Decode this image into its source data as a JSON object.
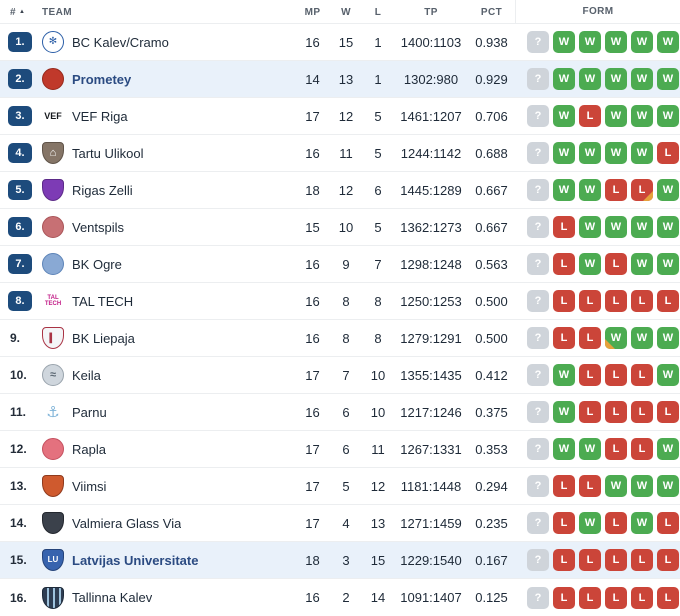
{
  "colors": {
    "badge": "#1d4b7c",
    "win": "#4cab51",
    "loss": "#cb4539",
    "unknown": "#cfd4da",
    "overtime_corner": "#e6a23c",
    "highlight_row": "#e9f1fa",
    "header_text": "#58616c",
    "text": "#1e2a38",
    "team_highlight": "#2b4b82",
    "border": "#eceef0"
  },
  "header": {
    "rank": "#",
    "sort_icon": "▲",
    "team": "TEAM",
    "mp": "MP",
    "w": "W",
    "l": "L",
    "tp": "TP",
    "pct": "PCT",
    "form": "FORM"
  },
  "teams": [
    {
      "rank": "1.",
      "badge": true,
      "highlight": false,
      "name": "BC Kalev/Cramo",
      "mp": 16,
      "w": 15,
      "l": 1,
      "tp": "1400:1103",
      "pct": "0.938",
      "logo": {
        "shape": "circle",
        "bg": "#ffffff",
        "border": "#2b5ea7",
        "label": "✻",
        "labelColor": "#2b5ea7",
        "labelSize": "10px"
      },
      "form": [
        {
          "r": "?"
        },
        {
          "r": "W"
        },
        {
          "r": "W"
        },
        {
          "r": "W"
        },
        {
          "r": "W"
        },
        {
          "r": "W"
        }
      ]
    },
    {
      "rank": "2.",
      "badge": true,
      "highlight": true,
      "name": "Prometey",
      "mp": 14,
      "w": 13,
      "l": 1,
      "tp": "1302:980",
      "pct": "0.929",
      "logo": {
        "shape": "circle",
        "bg": "#c0392b",
        "border": "#96281b",
        "label": "",
        "labelColor": "#ffffff",
        "labelSize": "9px"
      },
      "form": [
        {
          "r": "?"
        },
        {
          "r": "W"
        },
        {
          "r": "W"
        },
        {
          "r": "W"
        },
        {
          "r": "W"
        },
        {
          "r": "W"
        }
      ]
    },
    {
      "rank": "3.",
      "badge": true,
      "highlight": false,
      "name": "VEF Riga",
      "mp": 17,
      "w": 12,
      "l": 5,
      "tp": "1461:1207",
      "pct": "0.706",
      "logo": {
        "shape": "text",
        "bg": "transparent",
        "border": "",
        "label": "VEF",
        "labelColor": "#15181c",
        "labelSize": "9px"
      },
      "form": [
        {
          "r": "?"
        },
        {
          "r": "W"
        },
        {
          "r": "L"
        },
        {
          "r": "W"
        },
        {
          "r": "W"
        },
        {
          "r": "W"
        }
      ]
    },
    {
      "rank": "4.",
      "badge": true,
      "highlight": false,
      "name": "Tartu Ulikool",
      "mp": 16,
      "w": 11,
      "l": 5,
      "tp": "1244:1142",
      "pct": "0.688",
      "logo": {
        "shape": "shield",
        "bg": "#857567",
        "border": "#5f5348",
        "label": "⌂",
        "labelColor": "#ffffff",
        "labelSize": "11px"
      },
      "form": [
        {
          "r": "?"
        },
        {
          "r": "W"
        },
        {
          "r": "W"
        },
        {
          "r": "W"
        },
        {
          "r": "W"
        },
        {
          "r": "L"
        }
      ]
    },
    {
      "rank": "5.",
      "badge": true,
      "highlight": false,
      "name": "Rigas Zelli",
      "mp": 18,
      "w": 12,
      "l": 6,
      "tp": "1445:1289",
      "pct": "0.667",
      "logo": {
        "shape": "shield",
        "bg": "#7d3bb5",
        "border": "#5c2a88",
        "label": "",
        "labelColor": "#ffffff",
        "labelSize": "9px"
      },
      "form": [
        {
          "r": "?"
        },
        {
          "r": "W"
        },
        {
          "r": "W"
        },
        {
          "r": "L"
        },
        {
          "r": "L",
          "corner": "br"
        },
        {
          "r": "W"
        }
      ]
    },
    {
      "rank": "6.",
      "badge": true,
      "highlight": false,
      "name": "Ventspils",
      "mp": 15,
      "w": 10,
      "l": 5,
      "tp": "1362:1273",
      "pct": "0.667",
      "logo": {
        "shape": "circle",
        "bg": "#c77074",
        "border": "#a95458",
        "label": "",
        "labelColor": "#ffffff",
        "labelSize": "9px"
      },
      "form": [
        {
          "r": "?"
        },
        {
          "r": "L"
        },
        {
          "r": "W"
        },
        {
          "r": "W"
        },
        {
          "r": "W"
        },
        {
          "r": "W"
        }
      ]
    },
    {
      "rank": "7.",
      "badge": true,
      "highlight": false,
      "name": "BK Ogre",
      "mp": 16,
      "w": 9,
      "l": 7,
      "tp": "1298:1248",
      "pct": "0.563",
      "logo": {
        "shape": "circle",
        "bg": "#89a9d4",
        "border": "#5d84b8",
        "label": "",
        "labelColor": "#ffffff",
        "labelSize": "9px"
      },
      "form": [
        {
          "r": "?"
        },
        {
          "r": "L"
        },
        {
          "r": "W"
        },
        {
          "r": "L"
        },
        {
          "r": "W"
        },
        {
          "r": "W"
        }
      ]
    },
    {
      "rank": "8.",
      "badge": true,
      "highlight": false,
      "name": "TAL TECH",
      "mp": 16,
      "w": 8,
      "l": 8,
      "tp": "1250:1253",
      "pct": "0.500",
      "logo": {
        "shape": "text",
        "bg": "transparent",
        "border": "",
        "label": "TAL\nTECH",
        "labelColor": "#c21d87",
        "labelSize": "6px"
      },
      "form": [
        {
          "r": "?"
        },
        {
          "r": "L"
        },
        {
          "r": "L"
        },
        {
          "r": "L"
        },
        {
          "r": "L"
        },
        {
          "r": "L"
        }
      ]
    },
    {
      "rank": "9.",
      "badge": false,
      "highlight": false,
      "name": "BK Liepaja",
      "mp": 16,
      "w": 8,
      "l": 8,
      "tp": "1279:1291",
      "pct": "0.500",
      "logo": {
        "shape": "shield",
        "bg": "#f4f5f7",
        "border": "#a93344",
        "label": "▍",
        "labelColor": "#a93344",
        "labelSize": "9px"
      },
      "form": [
        {
          "r": "?"
        },
        {
          "r": "L"
        },
        {
          "r": "L"
        },
        {
          "r": "W",
          "corner": "bl"
        },
        {
          "r": "W"
        },
        {
          "r": "W"
        }
      ]
    },
    {
      "rank": "10.",
      "badge": false,
      "highlight": false,
      "name": "Keila",
      "mp": 17,
      "w": 7,
      "l": 10,
      "tp": "1355:1435",
      "pct": "0.412",
      "logo": {
        "shape": "circle",
        "bg": "#cfd6dd",
        "border": "#9aa4ad",
        "label": "≈",
        "labelColor": "#5e6a75",
        "labelSize": "11px"
      },
      "form": [
        {
          "r": "?"
        },
        {
          "r": "W"
        },
        {
          "r": "L"
        },
        {
          "r": "L"
        },
        {
          "r": "L"
        },
        {
          "r": "W"
        }
      ]
    },
    {
      "rank": "11.",
      "badge": false,
      "highlight": false,
      "name": "Parnu",
      "mp": 16,
      "w": 6,
      "l": 10,
      "tp": "1217:1246",
      "pct": "0.375",
      "logo": {
        "shape": "text",
        "bg": "transparent",
        "border": "",
        "label": "⚓",
        "labelColor": "#7fb3d8",
        "labelSize": "15px"
      },
      "form": [
        {
          "r": "?"
        },
        {
          "r": "W"
        },
        {
          "r": "L"
        },
        {
          "r": "L"
        },
        {
          "r": "L"
        },
        {
          "r": "L"
        }
      ]
    },
    {
      "rank": "12.",
      "badge": false,
      "highlight": false,
      "name": "Rapla",
      "mp": 17,
      "w": 6,
      "l": 11,
      "tp": "1267:1331",
      "pct": "0.353",
      "logo": {
        "shape": "circle",
        "bg": "#e4717e",
        "border": "#c44f5e",
        "label": "",
        "labelColor": "#ffffff",
        "labelSize": "9px"
      },
      "form": [
        {
          "r": "?"
        },
        {
          "r": "W"
        },
        {
          "r": "W"
        },
        {
          "r": "L"
        },
        {
          "r": "L"
        },
        {
          "r": "W"
        }
      ]
    },
    {
      "rank": "13.",
      "badge": false,
      "highlight": false,
      "name": "Viimsi",
      "mp": 17,
      "w": 5,
      "l": 12,
      "tp": "1181:1448",
      "pct": "0.294",
      "logo": {
        "shape": "shield",
        "bg": "#cf5a2e",
        "border": "#8f3a1d",
        "label": "",
        "labelColor": "#ffffff",
        "labelSize": "9px"
      },
      "form": [
        {
          "r": "?"
        },
        {
          "r": "L"
        },
        {
          "r": "L"
        },
        {
          "r": "W"
        },
        {
          "r": "W"
        },
        {
          "r": "W"
        }
      ]
    },
    {
      "rank": "14.",
      "badge": false,
      "highlight": false,
      "name": "Valmiera Glass Via",
      "mp": 17,
      "w": 4,
      "l": 13,
      "tp": "1271:1459",
      "pct": "0.235",
      "logo": {
        "shape": "shield",
        "bg": "#3b414b",
        "border": "#23272e",
        "label": "",
        "labelColor": "#ffffff",
        "labelSize": "9px"
      },
      "form": [
        {
          "r": "?"
        },
        {
          "r": "L"
        },
        {
          "r": "W"
        },
        {
          "r": "L"
        },
        {
          "r": "W"
        },
        {
          "r": "L"
        }
      ]
    },
    {
      "rank": "15.",
      "badge": false,
      "highlight": true,
      "name": "Latvijas Universitate",
      "mp": 18,
      "w": 3,
      "l": 15,
      "tp": "1229:1540",
      "pct": "0.167",
      "logo": {
        "shape": "shield",
        "bg": "#3763ae",
        "border": "#24437a",
        "label": "LU",
        "labelColor": "#ffffff",
        "labelSize": "8px"
      },
      "form": [
        {
          "r": "?"
        },
        {
          "r": "L"
        },
        {
          "r": "L"
        },
        {
          "r": "L"
        },
        {
          "r": "L"
        },
        {
          "r": "L"
        }
      ]
    },
    {
      "rank": "16.",
      "badge": false,
      "highlight": false,
      "name": "Tallinna Kalev",
      "mp": 16,
      "w": 2,
      "l": 14,
      "tp": "1091:1407",
      "pct": "0.125",
      "logo": {
        "shape": "shield",
        "bg": "repeating-linear-gradient(90deg,#2e3d52 0 4px,#9fc3dd 4px 6px)",
        "border": "#1d2a3a",
        "label": "",
        "labelColor": "#ffffff",
        "labelSize": "9px"
      },
      "form": [
        {
          "r": "?"
        },
        {
          "r": "L"
        },
        {
          "r": "L"
        },
        {
          "r": "L"
        },
        {
          "r": "L"
        },
        {
          "r": "L"
        }
      ]
    }
  ]
}
